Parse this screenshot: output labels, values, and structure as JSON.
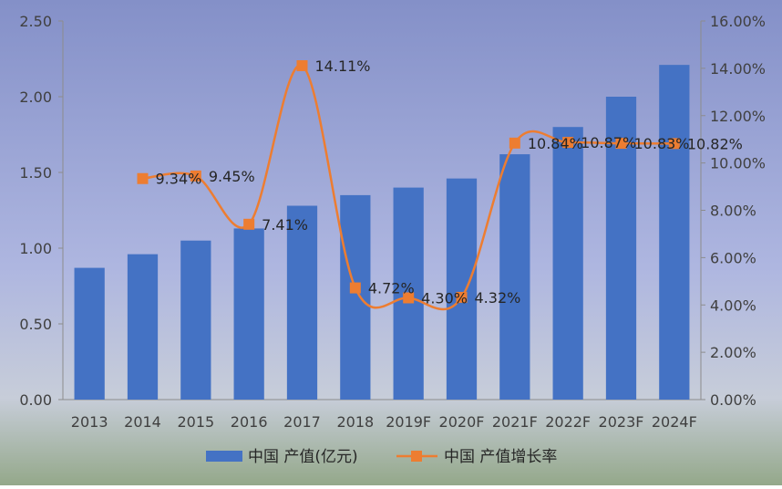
{
  "chart_data": {
    "type": "bar",
    "categories": [
      "2013",
      "2014",
      "2015",
      "2016",
      "2017",
      "2018",
      "2019F",
      "2020F",
      "2021F",
      "2022F",
      "2023F",
      "2024F"
    ],
    "series": [
      {
        "name": "中国 产值(亿元)",
        "type": "bar",
        "axis": "left",
        "color": "#4472C4",
        "values": [
          0.87,
          0.96,
          1.05,
          1.13,
          1.28,
          1.35,
          1.4,
          1.46,
          1.62,
          1.8,
          2.0,
          2.21
        ]
      },
      {
        "name": "中国 产值增长率",
        "type": "line",
        "axis": "right",
        "color": "#ED7D31",
        "smooth": true,
        "values": [
          null,
          9.34,
          9.45,
          7.41,
          14.11,
          4.72,
          4.3,
          4.32,
          10.84,
          10.87,
          10.83,
          10.82
        ],
        "labels": [
          "",
          "9.34%",
          "9.45%",
          "7.41%",
          "14.11%",
          "4.72%",
          "4.30%",
          "4.32%",
          "10.84%",
          "10.87%",
          "10.83%",
          "10.82%"
        ]
      }
    ],
    "y_left": {
      "min": 0,
      "max": 2.5,
      "ticks": [
        "0.00",
        "0.50",
        "1.00",
        "1.50",
        "2.00",
        "2.50"
      ]
    },
    "y_right": {
      "min": 0,
      "max": 16,
      "ticks": [
        "0.00%",
        "2.00%",
        "4.00%",
        "6.00%",
        "8.00%",
        "10.00%",
        "12.00%",
        "14.00%",
        "16.00%"
      ]
    },
    "legend_position": "bottom",
    "grid": false,
    "background": {
      "top": "#8490C8",
      "bottom": "#94A88A"
    }
  }
}
